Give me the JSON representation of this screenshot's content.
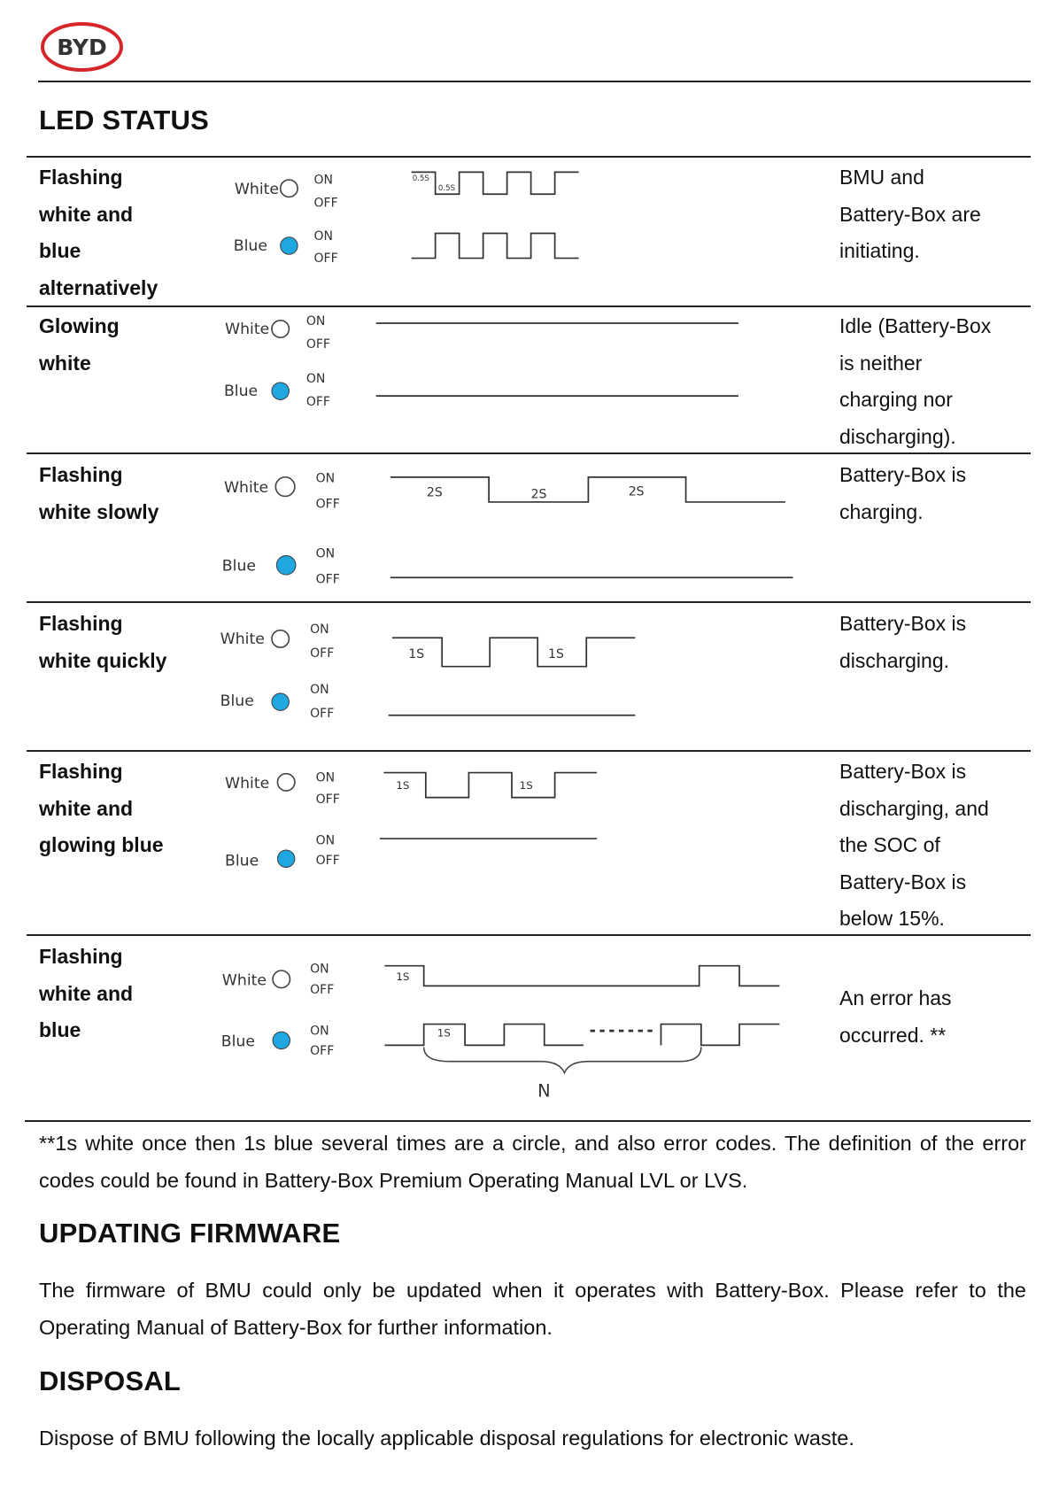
{
  "logo": {
    "text": "BYD"
  },
  "colors": {
    "blue_led": "#1ea7e1",
    "logo_red": "#d7262a"
  },
  "sections": {
    "led_status": "LED STATUS",
    "updating_firmware": "UPDATING FIRMWARE",
    "disposal": "DISPOSAL"
  },
  "legend": {
    "white": "White",
    "blue": "Blue",
    "on": "ON",
    "off": "OFF"
  },
  "rows": [
    {
      "state": [
        "Flashing",
        "white and",
        "blue",
        "alternatively"
      ],
      "meaning": [
        "BMU and",
        "Battery-Box are",
        "initiating."
      ],
      "timing": [
        "0.5S",
        "0.5S"
      ]
    },
    {
      "state": [
        "Glowing",
        "white"
      ],
      "meaning": [
        "Idle (Battery-Box",
        "is neither",
        "charging nor",
        "discharging)."
      ]
    },
    {
      "state": [
        "Flashing",
        "white slowly"
      ],
      "meaning": [
        "Battery-Box is",
        "charging."
      ],
      "timing": [
        "2S",
        "2S",
        "2S"
      ]
    },
    {
      "state": [
        "Flashing",
        "white quickly"
      ],
      "meaning": [
        "Battery-Box is",
        "discharging."
      ],
      "timing": [
        "1S",
        "1S"
      ]
    },
    {
      "state": [
        "Flashing",
        "white and",
        "glowing blue"
      ],
      "meaning": [
        "Battery-Box is",
        "discharging, and",
        "the SOC of",
        "Battery-Box is",
        "below 15%."
      ],
      "timing": [
        "1S",
        "1S"
      ]
    },
    {
      "state": [
        "Flashing",
        "white and",
        "blue"
      ],
      "meaning": [
        "An error has",
        "occurred. **"
      ],
      "timing": [
        "1S",
        "1S"
      ],
      "count_label": "N"
    }
  ],
  "footnote": "**1s white once then 1s blue several times are a circle, and also error codes. The definition of the error codes could be found in Battery-Box Premium Operating Manual LVL or LVS.",
  "firmware_text": "The firmware of BMU could only be updated when it operates with Battery-Box. Please refer to the Operating Manual of Battery-Box for further information.",
  "disposal_text": "Dispose of BMU following the locally applicable disposal regulations for electronic waste."
}
